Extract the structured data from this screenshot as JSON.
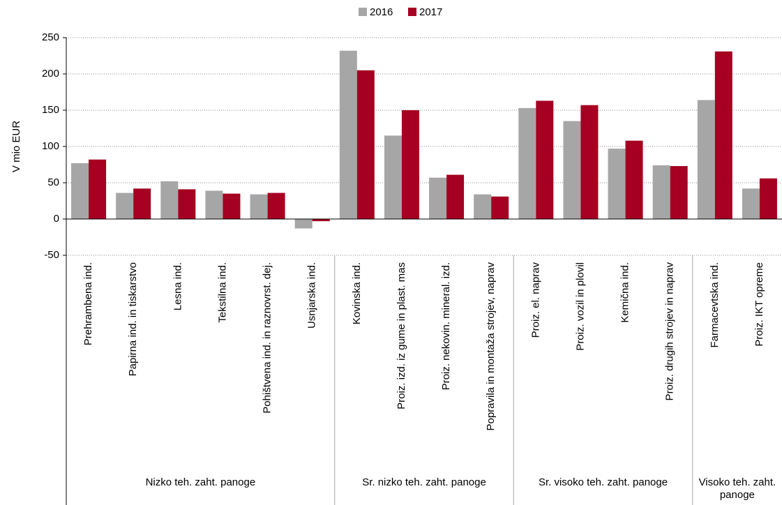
{
  "chart_data": {
    "type": "bar",
    "ylabel": "V mio EUR",
    "categories": [
      "Prehrambena ind.",
      "Papirna ind. in tiskarstvo",
      "Lesna ind.",
      "Tekstilna ind.",
      "Pohištvena ind. in raznovrst. dej.",
      "Usnjarska ind.",
      "Kovinska ind.",
      "Proiz. izd. iz gume in plast. mas",
      "Proiz. nekovin. mineral. izd.",
      "Popravila in montaža strojev, naprav",
      "Proiz. el. naprav",
      "Proiz. vozil in plovil",
      "Kemična ind.",
      "Proiz. drugih strojev in naprav",
      "Farmacevtska ind.",
      "Proiz. IKT opreme"
    ],
    "category_groups": [
      {
        "name": "Nizko teh. zaht. panoge",
        "size": 6
      },
      {
        "name": "Sr. nizko teh. zaht. panoge",
        "size": 4
      },
      {
        "name": "Sr. visoko teh. zaht. panoge",
        "size": 4
      },
      {
        "name": "Visoko teh. zaht. panoge",
        "size": 2
      }
    ],
    "series": [
      {
        "name": "2016",
        "color": "#a6a6a6",
        "values": [
          77,
          36,
          52,
          39,
          34,
          -13,
          232,
          115,
          57,
          34,
          153,
          135,
          97,
          74,
          164,
          42
        ]
      },
      {
        "name": "2017",
        "color": "#a50021",
        "values": [
          82,
          42,
          41,
          35,
          36,
          -3,
          205,
          150,
          61,
          31,
          163,
          157,
          108,
          73,
          231,
          56
        ]
      }
    ],
    "ylim": [
      -50,
      250
    ],
    "yticks": [
      -50,
      0,
      50,
      100,
      150,
      200,
      250
    ],
    "grid": true,
    "legend": "top"
  }
}
